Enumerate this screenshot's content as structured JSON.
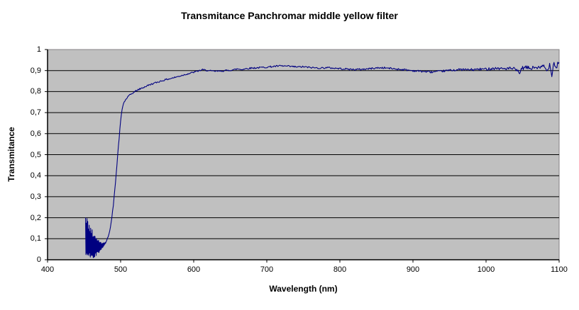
{
  "chart": {
    "title": "Transmitance Panchromar middle yellow filter",
    "x_axis": {
      "title": "Wavelength (nm)",
      "tick_labels": [
        "400",
        "500",
        "600",
        "700",
        "800",
        "900",
        "1000",
        "1100"
      ]
    },
    "y_axis": {
      "title": "Transmitance",
      "tick_labels": [
        "0",
        "0,1",
        "0,2",
        "0,3",
        "0,4",
        "0,5",
        "0,6",
        "0,7",
        "0,8",
        "0,9",
        "1"
      ]
    }
  },
  "chart_data": {
    "type": "line",
    "title": "Transmitance Panchromar middle yellow filter",
    "xlabel": "Wavelength (nm)",
    "ylabel": "Transmitance",
    "xlim": [
      400,
      1100
    ],
    "ylim": [
      0,
      1
    ],
    "x_ticks": [
      400,
      500,
      600,
      700,
      800,
      900,
      1000,
      1100
    ],
    "y_ticks": [
      0,
      0.1,
      0.2,
      0.3,
      0.4,
      0.5,
      0.6,
      0.7,
      0.8,
      0.9,
      1
    ],
    "grid": "horizontal",
    "legend": "none",
    "plot_bg_color": "#c0c0c0",
    "plot_border_color": "#848284",
    "gridline_color": "#000000",
    "axis_color": "#000000",
    "series": [
      {
        "name": "Transmittance",
        "color": "#000080",
        "anchors": [
          [
            480,
            0.085
          ],
          [
            482,
            0.1
          ],
          [
            484,
            0.125
          ],
          [
            486,
            0.155
          ],
          [
            488,
            0.2
          ],
          [
            490,
            0.26
          ],
          [
            492,
            0.33
          ],
          [
            494,
            0.41
          ],
          [
            496,
            0.5
          ],
          [
            498,
            0.58
          ],
          [
            500,
            0.66
          ],
          [
            502,
            0.715
          ],
          [
            504,
            0.745
          ],
          [
            507,
            0.762
          ],
          [
            510,
            0.775
          ],
          [
            514,
            0.787
          ],
          [
            518,
            0.797
          ],
          [
            523,
            0.807
          ],
          [
            528,
            0.815
          ],
          [
            534,
            0.824
          ],
          [
            540,
            0.833
          ],
          [
            547,
            0.841
          ],
          [
            554,
            0.849
          ],
          [
            561,
            0.856
          ],
          [
            568,
            0.862
          ],
          [
            575,
            0.868
          ],
          [
            582,
            0.875
          ],
          [
            589,
            0.882
          ],
          [
            596,
            0.888
          ],
          [
            602,
            0.894
          ],
          [
            607,
            0.899
          ],
          [
            612,
            0.904
          ],
          [
            616,
            0.902
          ],
          [
            621,
            0.899
          ],
          [
            627,
            0.897
          ],
          [
            634,
            0.897
          ],
          [
            641,
            0.899
          ],
          [
            648,
            0.901
          ],
          [
            655,
            0.904
          ],
          [
            660,
            0.908
          ],
          [
            665,
            0.905
          ],
          [
            672,
            0.909
          ],
          [
            679,
            0.912
          ],
          [
            686,
            0.913
          ],
          [
            694,
            0.915
          ],
          [
            702,
            0.917
          ],
          [
            710,
            0.92
          ],
          [
            718,
            0.922
          ],
          [
            726,
            0.921
          ],
          [
            734,
            0.919
          ],
          [
            742,
            0.917
          ],
          [
            750,
            0.918
          ],
          [
            758,
            0.915
          ],
          [
            766,
            0.913
          ],
          [
            774,
            0.912
          ],
          [
            782,
            0.914
          ],
          [
            790,
            0.912
          ],
          [
            798,
            0.91
          ],
          [
            806,
            0.908
          ],
          [
            814,
            0.906
          ],
          [
            822,
            0.905
          ],
          [
            830,
            0.906
          ],
          [
            838,
            0.908
          ],
          [
            846,
            0.911
          ],
          [
            854,
            0.913
          ],
          [
            862,
            0.913
          ],
          [
            870,
            0.91
          ],
          [
            878,
            0.907
          ],
          [
            886,
            0.905
          ],
          [
            894,
            0.902
          ],
          [
            902,
            0.899
          ],
          [
            910,
            0.897
          ],
          [
            918,
            0.895
          ],
          [
            926,
            0.893
          ],
          [
            934,
            0.895
          ],
          [
            942,
            0.898
          ],
          [
            950,
            0.901
          ],
          [
            958,
            0.903
          ],
          [
            966,
            0.905
          ],
          [
            974,
            0.904
          ],
          [
            982,
            0.904
          ],
          [
            990,
            0.906
          ],
          [
            998,
            0.907
          ],
          [
            1006,
            0.909
          ],
          [
            1014,
            0.911
          ],
          [
            1022,
            0.909
          ],
          [
            1030,
            0.91
          ],
          [
            1038,
            0.908
          ],
          [
            1046,
            0.891
          ],
          [
            1050,
            0.912
          ],
          [
            1056,
            0.914
          ],
          [
            1062,
            0.91
          ],
          [
            1068,
            0.917
          ],
          [
            1074,
            0.91
          ],
          [
            1079,
            0.924
          ],
          [
            1083,
            0.896
          ],
          [
            1087,
            0.93
          ],
          [
            1090,
            0.882
          ],
          [
            1093,
            0.944
          ],
          [
            1096,
            0.908
          ],
          [
            1098,
            0.935
          ],
          [
            1100,
            0.945
          ]
        ],
        "noisy_onset_band": {
          "range": [
            452,
            480
          ],
          "step": 0.5,
          "top_envelope": [
            [
              452,
              0.235
            ],
            [
              454,
              0.205
            ],
            [
              456,
              0.185
            ],
            [
              458,
              0.165
            ],
            [
              460,
              0.15
            ],
            [
              462,
              0.135
            ],
            [
              464,
              0.12
            ],
            [
              466,
              0.11
            ],
            [
              468,
              0.1
            ],
            [
              470,
              0.092
            ],
            [
              472,
              0.086
            ],
            [
              474,
              0.082
            ],
            [
              476,
              0.08
            ],
            [
              478,
              0.082
            ],
            [
              480,
              0.086
            ]
          ],
          "bottom_envelope": [
            [
              452,
              0.005
            ],
            [
              454,
              0.002
            ],
            [
              456,
              0.004
            ],
            [
              458,
              0.002
            ],
            [
              460,
              0.005
            ],
            [
              462,
              0.008
            ],
            [
              464,
              0.012
            ],
            [
              466,
              0.018
            ],
            [
              468,
              0.025
            ],
            [
              470,
              0.032
            ],
            [
              472,
              0.04
            ],
            [
              474,
              0.05
            ],
            [
              476,
              0.06
            ],
            [
              478,
              0.07
            ],
            [
              480,
              0.082
            ]
          ]
        },
        "noise_amplitude": [
          [
            480,
            0.004
          ],
          [
            520,
            0.004
          ],
          [
            600,
            0.0035
          ],
          [
            700,
            0.004
          ],
          [
            800,
            0.004
          ],
          [
            900,
            0.0045
          ],
          [
            950,
            0.005
          ],
          [
            1000,
            0.006
          ],
          [
            1040,
            0.008
          ],
          [
            1070,
            0.01
          ],
          [
            1100,
            0.012
          ]
        ]
      }
    ]
  }
}
